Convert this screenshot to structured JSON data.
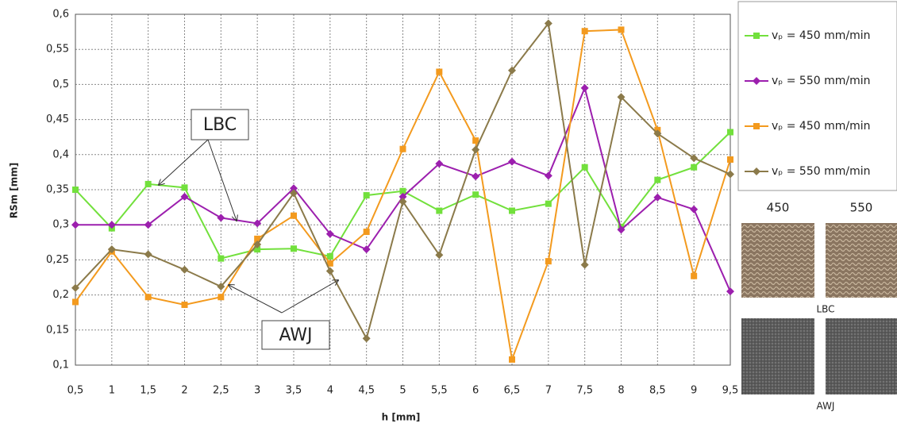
{
  "chart_data": {
    "type": "line",
    "x_label": "h [mm]",
    "y_label": "RSm [mm]",
    "x": [
      0.5,
      1,
      1.5,
      2,
      2.5,
      3,
      3.5,
      4,
      4.5,
      5,
      5.5,
      6,
      6.5,
      7,
      7.5,
      8,
      8.5,
      9,
      9.5
    ],
    "xlim": [
      0.5,
      9.5
    ],
    "xticks": [
      {
        "value": 0.5,
        "label": "0,5"
      },
      1,
      {
        "value": 1.5,
        "label": "1,5"
      },
      2,
      {
        "value": 2.5,
        "label": "2,5"
      },
      3,
      {
        "value": 3.5,
        "label": "3,5"
      },
      4,
      {
        "value": 4.5,
        "label": "4,5"
      },
      5,
      {
        "value": 5.5,
        "label": "5,5"
      },
      6,
      {
        "value": 6.5,
        "label": "6,5"
      },
      7,
      {
        "value": 7.5,
        "label": "7,5"
      },
      8,
      {
        "value": 8.5,
        "label": "8,5"
      },
      9,
      {
        "value": 9.5,
        "label": "9,5"
      }
    ],
    "ylim": [
      0.1,
      0.6
    ],
    "yticks": [
      {
        "value": 0.1,
        "label": "0,1"
      },
      {
        "value": 0.15,
        "label": "0,15"
      },
      {
        "value": 0.2,
        "label": "0,2"
      },
      {
        "value": 0.25,
        "label": "0,25"
      },
      {
        "value": 0.3,
        "label": "0,3"
      },
      {
        "value": 0.35,
        "label": "0,35"
      },
      {
        "value": 0.4,
        "label": "0,4"
      },
      {
        "value": 0.45,
        "label": "0,45"
      },
      {
        "value": 0.5,
        "label": "0,5"
      },
      {
        "value": 0.55,
        "label": "0,55"
      },
      {
        "value": 0.6,
        "label": "0,6"
      }
    ],
    "grid": true,
    "legend": "right",
    "series": [
      {
        "name": "vₚ = 450 mm/min",
        "color": "#72e03c",
        "marker": "square",
        "values": [
          0.35,
          0.295,
          0.358,
          0.353,
          0.252,
          0.265,
          0.266,
          0.255,
          0.342,
          0.348,
          0.32,
          0.343,
          0.32,
          0.33,
          0.382,
          0.297,
          0.364,
          0.382,
          0.432
        ]
      },
      {
        "name": "vₚ = 550 mm/min",
        "color": "#9c1fae",
        "marker": "diamond",
        "values": [
          0.3,
          0.3,
          0.3,
          0.34,
          0.31,
          0.302,
          0.352,
          0.287,
          0.265,
          0.34,
          0.387,
          0.369,
          0.39,
          0.37,
          0.495,
          0.293,
          0.339,
          0.322,
          0.205
        ]
      },
      {
        "name": "vₚ = 450 mm/min",
        "color": "#f39a1e",
        "marker": "square",
        "values": [
          0.19,
          0.262,
          0.197,
          0.186,
          0.197,
          0.28,
          0.313,
          0.245,
          0.29,
          0.408,
          0.518,
          0.42,
          0.108,
          0.248,
          0.576,
          0.578,
          0.435,
          0.227,
          0.393
        ]
      },
      {
        "name": "vₚ = 550 mm/min",
        "color": "#8b7a4a",
        "marker": "diamond",
        "values": [
          0.21,
          0.265,
          0.258,
          0.236,
          0.212,
          0.272,
          0.345,
          0.234,
          0.138,
          0.333,
          0.257,
          0.407,
          0.52,
          0.587,
          0.243,
          0.482,
          0.43,
          0.395,
          0.372
        ]
      }
    ],
    "annotations": [
      "LBC",
      "AWJ"
    ]
  },
  "photo_panel": {
    "columns": [
      "450",
      "550"
    ],
    "rows": [
      "LBC",
      "AWJ"
    ]
  }
}
